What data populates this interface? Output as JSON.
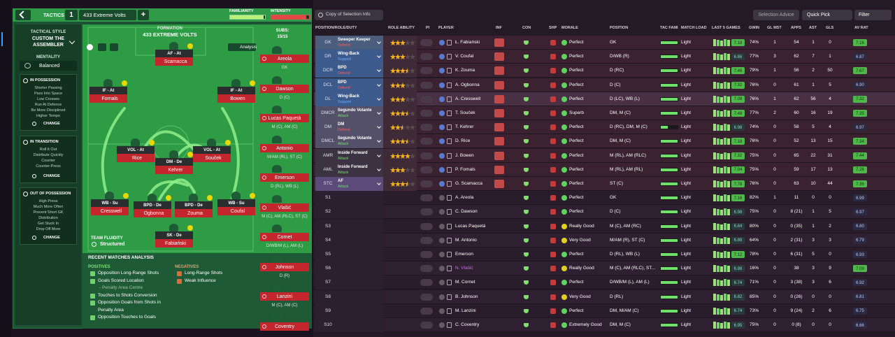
{
  "header": {
    "tab": "TACTICS",
    "slot": "1",
    "tactic_name": "433 Extreme Volts",
    "add": "+",
    "familiarity": "FAMILIARITY",
    "intensity": "INTENSITY"
  },
  "style": {
    "label": "TACTICAL STYLE",
    "name": "CUSTOM THE ASSEMBLER",
    "mentality_label": "MENTALITY",
    "mentality": "Balanced"
  },
  "instructions": [
    {
      "title": "IN POSSESSION",
      "items": [
        "Shorter Passing",
        "Pass Into Space",
        "Low Crosses",
        "Run At Defence",
        "Be More Disciplined",
        "Higher Tempo"
      ],
      "action": "CHANGE"
    },
    {
      "title": "IN TRANSITION",
      "items": [
        "Roll It Out",
        "Distribute Quickly",
        "Counter",
        "Counter-Press"
      ],
      "action": "CHANGE"
    },
    {
      "title": "OUT OF POSSESSION",
      "items": [
        "High Press",
        "Much More Often",
        "Prevent Short GK",
        "Distribution",
        "Get Stuck In",
        "Drop Off More"
      ],
      "action": "CHANGE"
    }
  ],
  "formation": {
    "label": "FORMATION",
    "name": "433 EXTREME VOLTS",
    "subs_label": "SUBS:",
    "subs_count": "15/15",
    "analysis": "Analysis",
    "fluidity_label": "TEAM FLUIDITY",
    "fluidity": "Structured"
  },
  "pitch_players": [
    {
      "role": "AF - At",
      "name": "Scamacca"
    },
    {
      "role": "IF - At",
      "name": "Fornals"
    },
    {
      "role": "IF - At",
      "name": "Bowen"
    },
    {
      "role": "VOL - At",
      "name": "Rice"
    },
    {
      "role": "DM - De",
      "name": "Kehrer"
    },
    {
      "role": "VOL - At",
      "name": "Souček"
    },
    {
      "role": "WB - Su",
      "name": "Cresswell"
    },
    {
      "role": "BPD - De",
      "name": "Ogbonna"
    },
    {
      "role": "BPD - De",
      "name": "Zouma"
    },
    {
      "role": "WB - Su",
      "name": "Coufal"
    },
    {
      "role": "SK - De",
      "name": "Fabiański"
    }
  ],
  "subs": [
    {
      "name": "Areola",
      "position": "GK"
    },
    {
      "name": "Dawson",
      "position": "D (C)"
    },
    {
      "name": "Lucas Paquetá",
      "position": "M (C), AM (C)"
    },
    {
      "name": "Antonio",
      "position": "M/AM (RL), ST (C)"
    },
    {
      "name": "Emerson",
      "position": "D (RL), WB (L)"
    },
    {
      "name": "Vlašić",
      "position": "M (C), AM (RLC), ST (C)"
    },
    {
      "name": "Cornet",
      "position": "D/WB/M (L), AM (L)"
    },
    {
      "name": "Johnson",
      "position": "D (R)"
    },
    {
      "name": "Lanzini",
      "position": "M (C), AM (C)"
    },
    {
      "name": "Coventry"
    }
  ],
  "analysis": {
    "title": "RECENT MATCHES ANALYSIS",
    "positives_label": "POSITIVES",
    "positives": [
      "Opposition Long-Range Shots",
      "Goals Scored Location",
      "- Penalty Area Centre",
      "Touches to Shots Conversion",
      "Opposition Goals from Shots in",
      "Penalty Area",
      "Opposition Touches to Goals"
    ],
    "negatives_label": "NEGATIVES",
    "negatives": [
      "Long-Range Shots",
      "Weak Influence"
    ]
  },
  "toolbar": {
    "view": "Copy of Selection Info",
    "advice": "Selection Advice",
    "quick_pick": "Quick Pick",
    "filter": "Filter"
  },
  "table": {
    "columns": [
      "POSITION/ROLE/DUTY",
      "ROLE ABILITY",
      "PI",
      "PLAYER",
      "INF",
      "CON",
      "SHP",
      "MORALE",
      "POSITION",
      "TAC FAMI",
      "MATCH LOAD",
      "LAST 5 GAMES",
      "GWIN",
      "GL MST",
      "APPS",
      "AST",
      "GLS",
      "AV RAT"
    ],
    "rows": [
      {
        "pos": "GK",
        "role": "Sweeper Keeper",
        "duty": "Defend",
        "stars": 3,
        "player": "Ł. Fabiański",
        "morale": "Perfect",
        "position": "GK",
        "load": "Light",
        "form": "7.18",
        "gwin": "74%",
        "glmst": "1",
        "apps": "54",
        "ast": "1",
        "gls": "0",
        "avrat": "7.16"
      },
      {
        "pos": "DR",
        "role": "Wing-Back",
        "duty": "Support",
        "stars": 3,
        "player": "V. Coufal",
        "morale": "Perfect",
        "position": "D/WB (R)",
        "load": "Light",
        "form": "6.86",
        "gwin": "77%",
        "glmst": "3",
        "apps": "62",
        "ast": "7",
        "gls": "1",
        "avrat": "6.87"
      },
      {
        "pos": "DCR",
        "role": "BPD",
        "duty": "Defend",
        "stars": 3.5,
        "player": "K. Zouma",
        "morale": "Perfect",
        "position": "D (RC)",
        "load": "Light",
        "form": "7.46",
        "gwin": "79%",
        "glmst": "1",
        "apps": "56",
        "ast": "2",
        "gls": "50",
        "avrat": "7.67"
      },
      {
        "pos": "DCL",
        "role": "BPD",
        "duty": "Defend",
        "stars": 3,
        "player": "A. Ogbonna",
        "morale": "Perfect",
        "position": "D (C)",
        "load": "Light",
        "form": "7.32",
        "gwin": "76%",
        "glmst": "0",
        "apps": "61",
        "ast": "1",
        "gls": "5",
        "avrat": "6.90"
      },
      {
        "pos": "DL",
        "role": "Wing-Back",
        "duty": "Support",
        "stars": 3,
        "player": "A. Cresswell",
        "morale": "Perfect",
        "position": "D (LC), WB (L)",
        "load": "Light",
        "form": "7.08",
        "gwin": "76%",
        "glmst": "1",
        "apps": "62",
        "ast": "56",
        "gls": "4",
        "avrat": "7.32"
      },
      {
        "pos": "DMCR",
        "role": "Segundo Volante",
        "duty": "Attack",
        "stars": 3.5,
        "player": "T. Souček",
        "morale": "Superb",
        "position": "DM, M (C)",
        "load": "Light",
        "form": "7.48",
        "gwin": "77%",
        "glmst": "2",
        "apps": "60",
        "ast": "16",
        "gls": "19",
        "avrat": "7.35"
      },
      {
        "pos": "DM",
        "role": "DM",
        "duty": "Defend",
        "stars": 2.5,
        "player": "T. Kehrer",
        "morale": "Perfect",
        "position": "D (RC), DM, M (C)",
        "load": "Light",
        "form": "6.98",
        "gwin": "74%",
        "glmst": "0",
        "apps": "58",
        "ast": "5",
        "gls": "4",
        "avrat": "6.97"
      },
      {
        "pos": "DMCL",
        "role": "Segundo Volante",
        "duty": "Attack",
        "stars": 3.5,
        "player": "D. Rice",
        "morale": "Perfect",
        "position": "DM, M (C)",
        "load": "Light",
        "form": "7.18",
        "gwin": "76%",
        "glmst": "0",
        "apps": "52",
        "ast": "13",
        "gls": "15",
        "avrat": "7.34"
      },
      {
        "pos": "AMR",
        "role": "Inside Forward",
        "duty": "Attack",
        "stars": 4,
        "player": "J. Bowen",
        "morale": "Perfect",
        "position": "M (RL), AM (RLC)",
        "load": "Light",
        "form": "7.32",
        "gwin": "75%",
        "glmst": "0",
        "apps": "65",
        "ast": "22",
        "gls": "31",
        "avrat": "7.44"
      },
      {
        "pos": "AML",
        "role": "Inside Forward",
        "duty": "Attack",
        "stars": 3,
        "player": "P. Fornals",
        "morale": "Perfect",
        "position": "M (RL), AM (RL)",
        "load": "Light",
        "form": "7.04",
        "gwin": "75%",
        "glmst": "0",
        "apps": "59",
        "ast": "17",
        "gls": "13",
        "avrat": "7.26"
      },
      {
        "pos": "STC",
        "role": "AF",
        "duty": "Attack",
        "stars": 3.5,
        "player": "G. Scamacca",
        "morale": "Perfect",
        "position": "ST (C)",
        "load": "Light",
        "form": "7.78",
        "gwin": "76%",
        "glmst": "0",
        "apps": "63",
        "ast": "10",
        "gls": "44",
        "avrat": "7.36"
      },
      {
        "pos": "S1",
        "player": "A. Areola",
        "morale": "Perfect",
        "position": "GK",
        "load": "Light",
        "form": "7.16",
        "gwin": "82%",
        "glmst": "1",
        "apps": "11",
        "ast": "0",
        "gls": "0",
        "avrat": "6.99"
      },
      {
        "pos": "S2",
        "player": "C. Dawson",
        "morale": "Perfect",
        "position": "D (C)",
        "load": "Light",
        "form": "6.98",
        "gwin": "75%",
        "glmst": "0",
        "apps": "8 (21)",
        "ast": "1",
        "gls": "5",
        "avrat": "6.97"
      },
      {
        "pos": "S3",
        "player": "Lucas Paquetá",
        "morale": "Really Good",
        "position": "M (C), AM (RC)",
        "load": "Light",
        "form": "6.84",
        "gwin": "80%",
        "glmst": "0",
        "apps": "0 (35)",
        "ast": "1",
        "gls": "2",
        "avrat": "6.80"
      },
      {
        "pos": "S4",
        "player": "M. Antonio",
        "morale": "Very Good",
        "position": "M/AM (R), ST (C)",
        "load": "Light",
        "form": "6.88",
        "gwin": "64%",
        "glmst": "0",
        "apps": "2 (31)",
        "ast": "3",
        "gls": "3",
        "avrat": "6.79"
      },
      {
        "pos": "S5",
        "player": "Emerson",
        "morale": "Perfect",
        "position": "D (RL), WB (L)",
        "load": "Light",
        "form": "7.12",
        "gwin": "78%",
        "glmst": "0",
        "apps": "6 (31)",
        "ast": "5",
        "gls": "0",
        "avrat": "6.93"
      },
      {
        "pos": "S6",
        "player": "N. Vlašić",
        "morale": "Really Good",
        "position": "M (C), AM (RLC), ST...",
        "load": "Light",
        "form": "6.98",
        "gwin": "16%",
        "glmst": "0",
        "apps": "38",
        "ast": "3",
        "gls": "9",
        "avrat": "7.09"
      },
      {
        "pos": "S7",
        "player": "M. Cornet",
        "morale": "Perfect",
        "position": "D/WB/M (L), AM (L)",
        "load": "Light",
        "form": "6.74",
        "gwin": "71%",
        "glmst": "0",
        "apps": "3 (38)",
        "ast": "3",
        "gls": "6",
        "avrat": "6.92"
      },
      {
        "pos": "S8",
        "player": "B. Johnson",
        "morale": "Very Good",
        "position": "D (RL)",
        "load": "Light",
        "form": "6.82",
        "gwin": "85%",
        "glmst": "0",
        "apps": "0 (26)",
        "ast": "0",
        "gls": "0",
        "avrat": "6.81"
      },
      {
        "pos": "S9",
        "player": "M. Lanzini",
        "morale": "Perfect",
        "position": "DM, M/AM (C)",
        "load": "Light",
        "form": "6.74",
        "gwin": "73%",
        "glmst": "0",
        "apps": "9 (24)",
        "ast": "2",
        "gls": "6",
        "avrat": "6.75"
      },
      {
        "pos": "S10",
        "player": "C. Coventry",
        "morale": "Extremely Good",
        "position": "DM, M (C)",
        "load": "Light",
        "form": "6.95",
        "gwin": "75%",
        "glmst": "0",
        "apps": "0 (8)",
        "ast": "0",
        "gls": "0",
        "avrat": "6.66"
      }
    ]
  }
}
